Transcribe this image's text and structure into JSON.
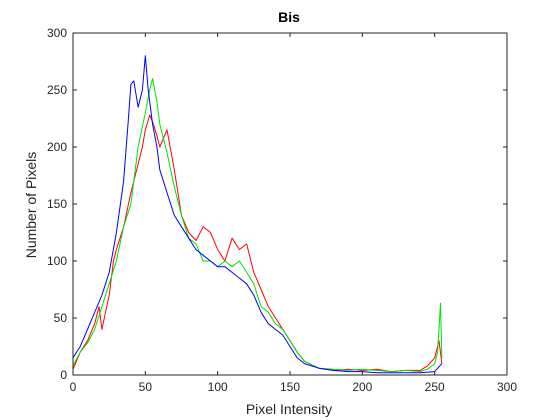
{
  "chart_data": {
    "type": "line",
    "title": "Bis",
    "xlabel": "Pixel Intensity",
    "ylabel": "Number of Pixels",
    "xlim": [
      0,
      300
    ],
    "ylim": [
      0,
      300
    ],
    "xticks": [
      "0",
      "50",
      "100",
      "150",
      "200",
      "250",
      "300"
    ],
    "yticks": [
      "0",
      "50",
      "100",
      "150",
      "200",
      "250",
      "300"
    ],
    "grid": false,
    "legend": "none",
    "series": [
      {
        "color": "#ff0000",
        "x": [
          0,
          5,
          10,
          15,
          18,
          20,
          25,
          28,
          30,
          35,
          40,
          45,
          48,
          50,
          53,
          55,
          58,
          60,
          65,
          70,
          75,
          80,
          85,
          90,
          95,
          100,
          105,
          110,
          115,
          120,
          125,
          130,
          135,
          140,
          145,
          150,
          155,
          160,
          170,
          180,
          190,
          200,
          210,
          220,
          230,
          240,
          245,
          250,
          253,
          255
        ],
        "y": [
          5,
          20,
          30,
          45,
          60,
          40,
          70,
          100,
          110,
          130,
          160,
          185,
          200,
          215,
          228,
          222,
          210,
          200,
          215,
          180,
          140,
          125,
          118,
          130,
          125,
          110,
          100,
          120,
          110,
          115,
          90,
          75,
          60,
          50,
          40,
          30,
          20,
          12,
          6,
          4,
          5,
          4,
          5,
          3,
          4,
          4,
          8,
          15,
          30,
          10
        ]
      },
      {
        "color": "#00e000",
        "x": [
          0,
          5,
          10,
          15,
          20,
          25,
          30,
          35,
          40,
          45,
          50,
          53,
          55,
          58,
          60,
          65,
          70,
          75,
          80,
          85,
          90,
          95,
          100,
          105,
          110,
          115,
          120,
          125,
          130,
          135,
          140,
          145,
          150,
          155,
          160,
          170,
          180,
          190,
          200,
          210,
          220,
          230,
          240,
          245,
          250,
          252,
          254,
          255
        ],
        "y": [
          8,
          20,
          28,
          40,
          60,
          80,
          100,
          130,
          150,
          200,
          230,
          250,
          260,
          240,
          220,
          195,
          165,
          140,
          120,
          115,
          100,
          100,
          95,
          100,
          95,
          100,
          90,
          80,
          60,
          55,
          45,
          40,
          30,
          20,
          12,
          6,
          5,
          4,
          5,
          4,
          3,
          4,
          3,
          5,
          10,
          20,
          63,
          15
        ]
      },
      {
        "color": "#0000ff",
        "x": [
          0,
          5,
          10,
          15,
          20,
          25,
          30,
          35,
          38,
          40,
          42,
          45,
          48,
          50,
          52,
          55,
          58,
          60,
          65,
          70,
          75,
          80,
          85,
          90,
          95,
          100,
          105,
          110,
          115,
          120,
          125,
          130,
          135,
          140,
          145,
          150,
          155,
          160,
          170,
          180,
          190,
          200,
          210,
          220,
          230,
          240,
          250,
          255
        ],
        "y": [
          15,
          25,
          40,
          55,
          70,
          90,
          125,
          170,
          220,
          255,
          258,
          235,
          250,
          280,
          250,
          220,
          200,
          180,
          160,
          140,
          130,
          120,
          110,
          105,
          100,
          95,
          95,
          90,
          85,
          80,
          70,
          55,
          45,
          40,
          35,
          25,
          15,
          10,
          6,
          4,
          3,
          3,
          2,
          2,
          2,
          2,
          3,
          10
        ]
      }
    ]
  }
}
